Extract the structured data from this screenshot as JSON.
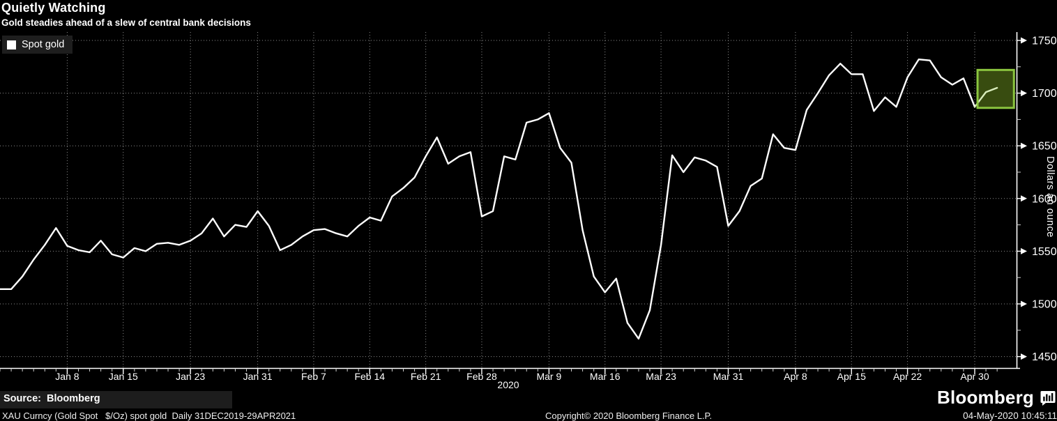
{
  "header": {
    "title": "Quietly Watching",
    "subtitle": "Gold steadies ahead of a slew of central bank decisions"
  },
  "legend": {
    "label": "Spot gold",
    "swatch_color": "#ffffff"
  },
  "footer": {
    "source": "Source:  Bloomberg",
    "security": "XAU Curncy (Gold Spot   $/Oz) spot gold  Daily 31DEC2019-29APR2021",
    "copyright": "Copyright© 2020 Bloomberg Finance L.P.",
    "brand": "Bloomberg",
    "brand_icon": "terminal-bars-icon",
    "timestamp": "04-May-2020 10:45:11"
  },
  "chart_data": {
    "type": "line",
    "title": "Quietly Watching",
    "subtitle": "Gold steadies ahead of a slew of central bank decisions",
    "ylabel": "Dollars an ounce",
    "ylim": [
      1450,
      1750
    ],
    "y_ticks": [
      1450,
      1500,
      1550,
      1600,
      1650,
      1700,
      1750
    ],
    "y_minor_tick_step": 25,
    "grid": "dotted",
    "legend_position": "top-left",
    "x_year_label": "2020",
    "x_ticks": [
      {
        "label": "Jan 8",
        "day_index": 6
      },
      {
        "label": "Jan 15",
        "day_index": 11
      },
      {
        "label": "Jan 23",
        "day_index": 17
      },
      {
        "label": "Jan 31",
        "day_index": 23
      },
      {
        "label": "Feb 7",
        "day_index": 28
      },
      {
        "label": "Feb 14",
        "day_index": 33
      },
      {
        "label": "Feb 21",
        "day_index": 38
      },
      {
        "label": "Feb 28",
        "day_index": 43
      },
      {
        "label": "Mar 9",
        "day_index": 49
      },
      {
        "label": "Mar 16",
        "day_index": 54
      },
      {
        "label": "Mar 23",
        "day_index": 59
      },
      {
        "label": "Mar 31",
        "day_index": 65
      },
      {
        "label": "Apr 8",
        "day_index": 71
      },
      {
        "label": "Apr 15",
        "day_index": 76
      },
      {
        "label": "Apr 22",
        "day_index": 81
      },
      {
        "label": "Apr 30",
        "day_index": 87
      }
    ],
    "series": [
      {
        "name": "Spot gold",
        "color": "#ffffff",
        "dates": [
          "Dec 31",
          "Jan 1",
          "Jan 2",
          "Jan 3",
          "Jan 6",
          "Jan 7",
          "Jan 8",
          "Jan 9",
          "Jan 10",
          "Jan 13",
          "Jan 14",
          "Jan 15",
          "Jan 16",
          "Jan 17",
          "Jan 20",
          "Jan 21",
          "Jan 22",
          "Jan 23",
          "Jan 24",
          "Jan 27",
          "Jan 28",
          "Jan 29",
          "Jan 30",
          "Jan 31",
          "Feb 3",
          "Feb 4",
          "Feb 5",
          "Feb 6",
          "Feb 7",
          "Feb 10",
          "Feb 11",
          "Feb 12",
          "Feb 13",
          "Feb 14",
          "Feb 17",
          "Feb 18",
          "Feb 19",
          "Feb 20",
          "Feb 21",
          "Feb 24",
          "Feb 25",
          "Feb 26",
          "Feb 27",
          "Feb 28",
          "Mar 2",
          "Mar 3",
          "Mar 4",
          "Mar 5",
          "Mar 6",
          "Mar 9",
          "Mar 10",
          "Mar 11",
          "Mar 12",
          "Mar 13",
          "Mar 16",
          "Mar 17",
          "Mar 18",
          "Mar 19",
          "Mar 20",
          "Mar 23",
          "Mar 24",
          "Mar 25",
          "Mar 26",
          "Mar 27",
          "Mar 30",
          "Mar 31",
          "Apr 1",
          "Apr 2",
          "Apr 3",
          "Apr 6",
          "Apr 7",
          "Apr 8",
          "Apr 9",
          "Apr 10",
          "Apr 13",
          "Apr 14",
          "Apr 15",
          "Apr 16",
          "Apr 17",
          "Apr 20",
          "Apr 21",
          "Apr 22",
          "Apr 23",
          "Apr 24",
          "Apr 27",
          "Apr 28",
          "Apr 29",
          "Apr 30",
          "May 1",
          "May 4"
        ],
        "values": [
          1514,
          1514,
          1526,
          1542,
          1556,
          1572,
          1555,
          1551,
          1549,
          1560,
          1547,
          1544,
          1553,
          1550,
          1557,
          1558,
          1556,
          1560,
          1567,
          1581,
          1564,
          1575,
          1573,
          1588,
          1574,
          1551,
          1556,
          1564,
          1570,
          1571,
          1567,
          1564,
          1574,
          1582,
          1579,
          1602,
          1610,
          1620,
          1640,
          1658,
          1633,
          1640,
          1644,
          1583,
          1588,
          1640,
          1637,
          1672,
          1675,
          1681,
          1648,
          1634,
          1570,
          1526,
          1511,
          1524,
          1482,
          1467,
          1494,
          1556,
          1641,
          1625,
          1639,
          1636,
          1630,
          1574,
          1588,
          1612,
          1619,
          1661,
          1648,
          1646,
          1684,
          1700,
          1717,
          1728,
          1718,
          1718,
          1683,
          1696,
          1687,
          1715,
          1732,
          1731,
          1715,
          1708,
          1714,
          1687,
          1701,
          1705
        ]
      }
    ],
    "green_segment_from_index": 87,
    "recent_line_color": "#d9edbc",
    "highlight_box": {
      "day_index_range": [
        87.25,
        90.5
      ],
      "value_range": [
        1686,
        1722
      ],
      "border_color": "#8bc53f",
      "fill_color": "#384c10"
    }
  }
}
